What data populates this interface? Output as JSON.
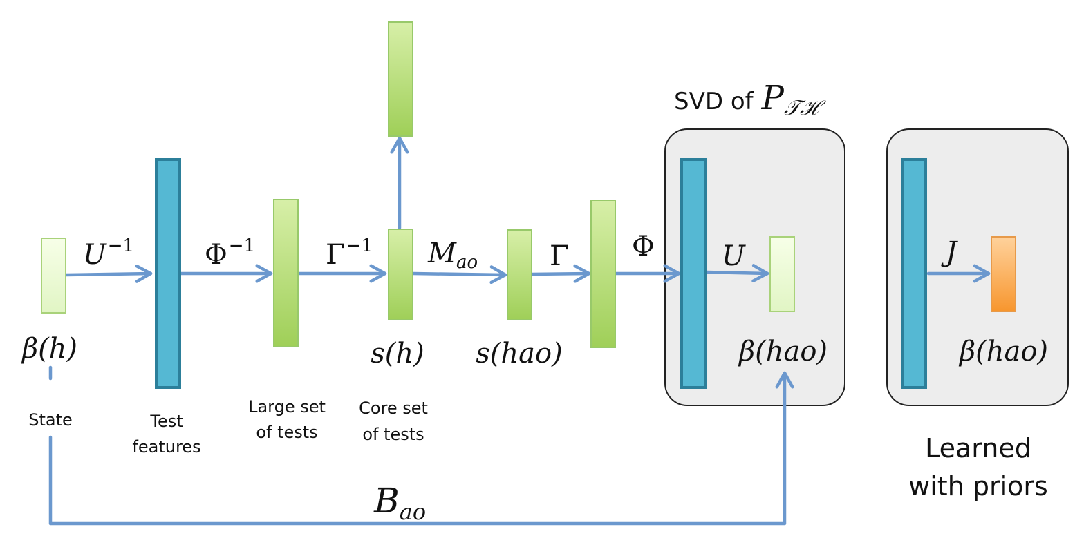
{
  "diagram": {
    "title_prefix": "SVD of",
    "title_math": "P",
    "title_math_sub": "𝒯ℋ",
    "learned_caption": [
      "Learned",
      "with priors"
    ],
    "node_captions": {
      "state": "State",
      "test_features": [
        "Test",
        "features"
      ],
      "large_set": [
        "Large set",
        "of tests"
      ],
      "core_set": [
        "Core set",
        "of tests"
      ]
    },
    "node_math": {
      "beta_h": "β(h)",
      "s_h": "s(h)",
      "s_hao": "s(hao)",
      "beta_hao_svd": "β(hao)",
      "beta_hao_learned": "β(hao)"
    },
    "edges": {
      "u_inv": {
        "base": "U",
        "sup": "−1"
      },
      "phi_inv": {
        "base": "Φ",
        "sup": "−1"
      },
      "gamma_inv": {
        "base": "Γ",
        "sup": "−1"
      },
      "m_ao": {
        "base": "M",
        "sub": "ao"
      },
      "gamma": {
        "base": "Γ"
      },
      "phi": {
        "base": "Φ"
      },
      "u": {
        "base": "U"
      },
      "j": {
        "base": "J"
      },
      "b_ao": {
        "base": "B",
        "sub": "ao"
      }
    }
  }
}
